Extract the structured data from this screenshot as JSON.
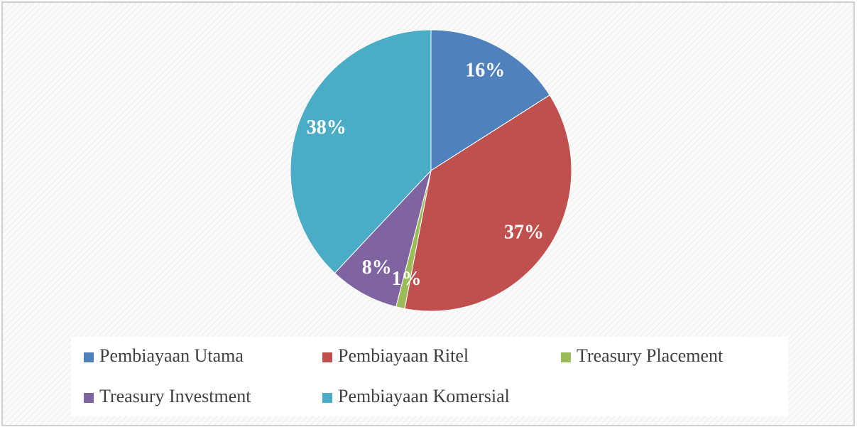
{
  "chart_data": {
    "type": "pie",
    "categories": [
      "Pembiayaan Utama",
      "Pembiayaan Ritel",
      "Treasury Placement",
      "Treasury Investment",
      "Pembiayaan Komersial"
    ],
    "values": [
      16,
      37,
      1,
      8,
      38
    ],
    "value_labels": [
      "16%",
      "37%",
      "1%",
      "8%",
      "38%"
    ],
    "colors": [
      "#4f81bd",
      "#c0504d",
      "#9bbb59",
      "#8064a2",
      "#4bacc6"
    ]
  }
}
